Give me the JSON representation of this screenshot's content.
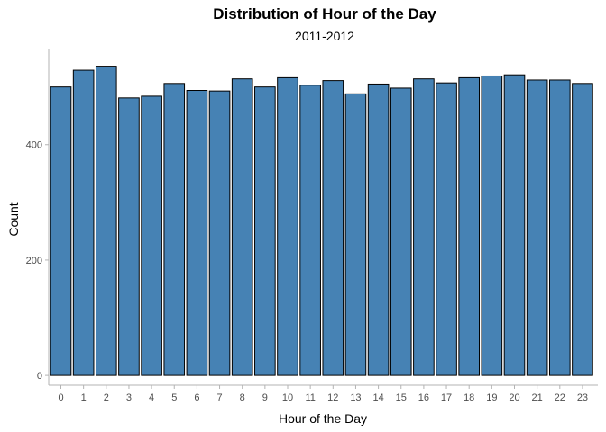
{
  "chart_data": {
    "type": "bar",
    "title": "Distribution of Hour of the Day",
    "subtitle": "2011-2012",
    "xlabel": "Hour of the Day",
    "ylabel": "Count",
    "categories": [
      "0",
      "1",
      "2",
      "3",
      "4",
      "5",
      "6",
      "7",
      "8",
      "9",
      "10",
      "11",
      "12",
      "13",
      "14",
      "15",
      "16",
      "17",
      "18",
      "19",
      "20",
      "21",
      "22",
      "23"
    ],
    "values": [
      500,
      529,
      536,
      481,
      484,
      506,
      494,
      493,
      514,
      500,
      516,
      503,
      511,
      488,
      505,
      498,
      514,
      507,
      516,
      519,
      521,
      512,
      512,
      506
    ],
    "yticks": [
      0,
      200,
      400
    ],
    "ylim": [
      -17,
      565
    ],
    "grid": false,
    "colors": {
      "bar_fill": "#4682b4",
      "bar_stroke": "#000000",
      "axis": "#b3b3b3",
      "tick_text": "#4d4d4d"
    }
  }
}
